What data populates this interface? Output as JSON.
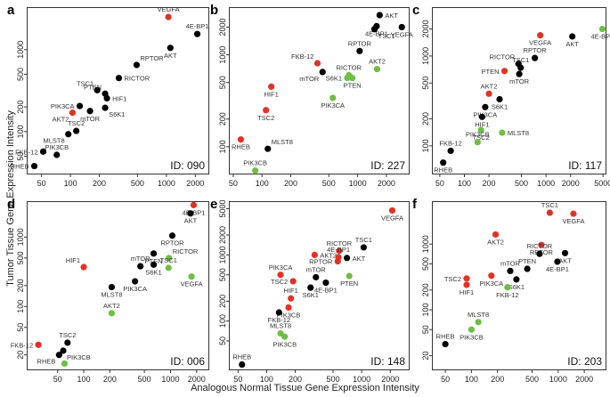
{
  "colors": {
    "red": "#e23226",
    "black": "#000000",
    "green": "#6fbe44"
  },
  "figure": {
    "ylabel": "Tumor Tissue Gene Expression Intensity",
    "xlabel": "Analogous Normal Tissue Gene Expression Intensity"
  },
  "chart_data": [
    {
      "type": "scatter",
      "letter": "a",
      "id_label": "ID: 090",
      "xlog": true,
      "ylog": true,
      "xlim": [
        35,
        2800
      ],
      "ylim": [
        30,
        3300
      ],
      "xticks": [
        50,
        100,
        200,
        500,
        1000,
        2000
      ],
      "yticks": [
        50,
        100,
        200,
        500,
        1000
      ],
      "points": [
        {
          "gene": "VEGFA",
          "x": 1050,
          "y": 2500,
          "color": "red",
          "label_pos": "above"
        },
        {
          "gene": "4E-BP1",
          "x": 2100,
          "y": 1550,
          "color": "black",
          "label_pos": "above"
        },
        {
          "gene": "AKT",
          "x": 1100,
          "y": 1050,
          "color": "black",
          "label_pos": "below"
        },
        {
          "gene": "RPTOR",
          "x": 490,
          "y": 650,
          "color": "black",
          "label_pos": "above-right"
        },
        {
          "gene": "RICTOR",
          "x": 320,
          "y": 450,
          "color": "black",
          "label_pos": "right"
        },
        {
          "gene": "TSC1",
          "x": 190,
          "y": 320,
          "color": "black",
          "label_pos": "above-left"
        },
        {
          "gene": "PTEN",
          "x": 230,
          "y": 290,
          "color": "black",
          "label_pos": "above-left"
        },
        {
          "gene": "HIF1",
          "x": 240,
          "y": 255,
          "color": "black",
          "label_pos": "right"
        },
        {
          "gene": "PIK3CA",
          "x": 125,
          "y": 205,
          "color": "black",
          "label_pos": "left"
        },
        {
          "gene": "S6K1",
          "x": 230,
          "y": 195,
          "color": "black",
          "label_pos": "below-right"
        },
        {
          "gene": "mTOR",
          "x": 160,
          "y": 178,
          "color": "black",
          "label_pos": "below"
        },
        {
          "gene": "AKT2",
          "x": 105,
          "y": 170,
          "color": "red",
          "label_pos": "below-left"
        },
        {
          "gene": "TSC2",
          "x": 115,
          "y": 102,
          "color": "black",
          "label_pos": "above"
        },
        {
          "gene": "MLST8",
          "x": 95,
          "y": 93,
          "color": "black",
          "label_pos": "below-left"
        },
        {
          "gene": "FKB-12",
          "x": 52,
          "y": 57,
          "color": "black",
          "label_pos": "left"
        },
        {
          "gene": "PIK3CB",
          "x": 72,
          "y": 52,
          "color": "black",
          "label_pos": "above"
        },
        {
          "gene": "RHEB",
          "x": 42,
          "y": 38,
          "color": "black",
          "label_pos": "left"
        }
      ]
    },
    {
      "type": "scatter",
      "letter": "b",
      "id_label": "ID: 227",
      "xlog": true,
      "ylog": true,
      "xlim": [
        45,
        3500
      ],
      "ylim": [
        50,
        3300
      ],
      "xticks": [
        50,
        100,
        200,
        500,
        1000,
        2000
      ],
      "yticks": [
        100,
        200,
        500,
        1000,
        2000
      ],
      "points": [
        {
          "gene": "AKT",
          "x": 1700,
          "y": 2700,
          "color": "black",
          "label_pos": "right"
        },
        {
          "gene": "4E-BP1",
          "x": 1580,
          "y": 2050,
          "color": "black",
          "label_pos": "below"
        },
        {
          "gene": "VEGFA",
          "x": 2900,
          "y": 2000,
          "color": "black",
          "label_pos": "below"
        },
        {
          "gene": "TSC1",
          "x": 1500,
          "y": 1900,
          "color": "black",
          "label_pos": "below-right"
        },
        {
          "gene": "RPTOR",
          "x": 1050,
          "y": 1100,
          "color": "black",
          "label_pos": "above"
        },
        {
          "gene": "FKB-12",
          "x": 380,
          "y": 810,
          "color": "red",
          "label_pos": "above-left"
        },
        {
          "gene": "AKT2",
          "x": 1600,
          "y": 700,
          "color": "green",
          "label_pos": "above"
        },
        {
          "gene": "RICTOR",
          "x": 810,
          "y": 600,
          "color": "green",
          "label_pos": "above"
        },
        {
          "gene": "S6K1",
          "x": 780,
          "y": 560,
          "color": "green",
          "label_pos": "left"
        },
        {
          "gene": "mTOR",
          "x": 430,
          "y": 650,
          "color": "black",
          "label_pos": "below-left"
        },
        {
          "gene": "PTEN",
          "x": 880,
          "y": 560,
          "color": "green",
          "label_pos": "below"
        },
        {
          "gene": "HIF1",
          "x": 125,
          "y": 450,
          "color": "red",
          "label_pos": "below"
        },
        {
          "gene": "PIK3CA",
          "x": 550,
          "y": 340,
          "color": "green",
          "label_pos": "below"
        },
        {
          "gene": "TSC2",
          "x": 110,
          "y": 250,
          "color": "red",
          "label_pos": "below"
        },
        {
          "gene": "RHEB",
          "x": 60,
          "y": 120,
          "color": "red",
          "label_pos": "below"
        },
        {
          "gene": "MLST8",
          "x": 115,
          "y": 95,
          "color": "black",
          "label_pos": "above-right"
        },
        {
          "gene": "PIK3CB",
          "x": 85,
          "y": 55,
          "color": "green",
          "label_pos": "above"
        }
      ]
    },
    {
      "type": "scatter",
      "letter": "c",
      "id_label": "ID: 117",
      "xlog": true,
      "ylog": true,
      "xlim": [
        40,
        5500
      ],
      "ylim": [
        48,
        3500
      ],
      "xticks": [
        50,
        100,
        200,
        500,
        1000,
        2000,
        5000
      ],
      "yticks": [
        100,
        200,
        500,
        1000,
        2000
      ],
      "points": [
        {
          "gene": "4E-BP1",
          "x": 4900,
          "y": 2000,
          "color": "green",
          "label_pos": "below"
        },
        {
          "gene": "VEGFA",
          "x": 850,
          "y": 1700,
          "color": "red",
          "label_pos": "below"
        },
        {
          "gene": "AKT",
          "x": 2100,
          "y": 1650,
          "color": "black",
          "label_pos": "below"
        },
        {
          "gene": "RPTOR",
          "x": 730,
          "y": 950,
          "color": "black",
          "label_pos": "above"
        },
        {
          "gene": "RICTOR",
          "x": 460,
          "y": 820,
          "color": "black",
          "label_pos": "above-left"
        },
        {
          "gene": "TSC1",
          "x": 490,
          "y": 740,
          "color": "black",
          "label_pos": "above"
        },
        {
          "gene": "PTEN",
          "x": 310,
          "y": 680,
          "color": "red",
          "label_pos": "left"
        },
        {
          "gene": "mTOR",
          "x": 470,
          "y": 630,
          "color": "black",
          "label_pos": "below"
        },
        {
          "gene": "AKT2",
          "x": 200,
          "y": 380,
          "color": "red",
          "label_pos": "above"
        },
        {
          "gene": "S6K1",
          "x": 270,
          "y": 330,
          "color": "black",
          "label_pos": "below"
        },
        {
          "gene": "PIK3CA",
          "x": 180,
          "y": 270,
          "color": "black",
          "label_pos": "below"
        },
        {
          "gene": "HIF1",
          "x": 165,
          "y": 210,
          "color": "black",
          "label_pos": "below"
        },
        {
          "gene": "TSC2",
          "x": 160,
          "y": 150,
          "color": "green",
          "label_pos": "below"
        },
        {
          "gene": "MLST8",
          "x": 290,
          "y": 140,
          "color": "green",
          "label_pos": "right"
        },
        {
          "gene": "PIK3CB",
          "x": 145,
          "y": 110,
          "color": "green",
          "label_pos": "above"
        },
        {
          "gene": "FKB-12",
          "x": 68,
          "y": 88,
          "color": "black",
          "label_pos": "above"
        },
        {
          "gene": "RHEB",
          "x": 55,
          "y": 65,
          "color": "black",
          "label_pos": "below"
        }
      ]
    },
    {
      "type": "scatter",
      "letter": "d",
      "id_label": "ID: 006",
      "xlog": true,
      "ylog": true,
      "xlim": [
        22,
        2800
      ],
      "ylim": [
        12,
        3300
      ],
      "xticks": [
        50,
        100,
        200,
        500,
        1000,
        2000
      ],
      "yticks": [
        20,
        50,
        100,
        200,
        500,
        1000
      ],
      "points": [
        {
          "gene": "4E-BP1",
          "x": 1850,
          "y": 2900,
          "color": "red",
          "label_pos": "below"
        },
        {
          "gene": "AKT",
          "x": 1700,
          "y": 2200,
          "color": "black",
          "label_pos": "below"
        },
        {
          "gene": "RPTOR",
          "x": 1050,
          "y": 1050,
          "color": "black",
          "label_pos": "below"
        },
        {
          "gene": "PTEN",
          "x": 640,
          "y": 580,
          "color": "black",
          "label_pos": "below"
        },
        {
          "gene": "RICTOR",
          "x": 960,
          "y": 500,
          "color": "green",
          "label_pos": "above-right"
        },
        {
          "gene": "mTOR",
          "x": 450,
          "y": 380,
          "color": "black",
          "label_pos": "above"
        },
        {
          "gene": "S6K1",
          "x": 640,
          "y": 400,
          "color": "black",
          "label_pos": "below"
        },
        {
          "gene": "TSC1",
          "x": 950,
          "y": 360,
          "color": "green",
          "label_pos": "above"
        },
        {
          "gene": "HIF1",
          "x": 100,
          "y": 370,
          "color": "red",
          "label_pos": "above-left"
        },
        {
          "gene": "VEGFA",
          "x": 1750,
          "y": 270,
          "color": "green",
          "label_pos": "below"
        },
        {
          "gene": "PIK3CA",
          "x": 390,
          "y": 230,
          "color": "black",
          "label_pos": "below"
        },
        {
          "gene": "MLST8",
          "x": 210,
          "y": 190,
          "color": "black",
          "label_pos": "below"
        },
        {
          "gene": "AKT2",
          "x": 210,
          "y": 80,
          "color": "green",
          "label_pos": "above"
        },
        {
          "gene": "FKB-12",
          "x": 30,
          "y": 28,
          "color": "red",
          "label_pos": "left"
        },
        {
          "gene": "TSC2",
          "x": 65,
          "y": 30,
          "color": "black",
          "label_pos": "above"
        },
        {
          "gene": "PIK3CB",
          "x": 58,
          "y": 23,
          "color": "black",
          "label_pos": "below-right"
        },
        {
          "gene": "RHEB",
          "x": 52,
          "y": 20,
          "color": "black",
          "label_pos": "below-left"
        },
        {
          "gene": "",
          "x": 60,
          "y": 15,
          "color": "green",
          "label_pos": "none"
        }
      ]
    },
    {
      "type": "scatter",
      "letter": "e",
      "id_label": "ID: 148",
      "xlog": true,
      "ylog": true,
      "xlim": [
        40,
        3200
      ],
      "ylim": [
        18,
        6500
      ],
      "xticks": [
        50,
        100,
        200,
        500,
        1000,
        2000
      ],
      "yticks": [
        50,
        100,
        200,
        500,
        1000,
        2000,
        5000
      ],
      "points": [
        {
          "gene": "VEGFA",
          "x": 2100,
          "y": 4700,
          "color": "red",
          "label_pos": "below"
        },
        {
          "gene": "TSC1",
          "x": 1050,
          "y": 1300,
          "color": "black",
          "label_pos": "above"
        },
        {
          "gene": "RICTOR",
          "x": 580,
          "y": 1150,
          "color": "red",
          "label_pos": "above"
        },
        {
          "gene": "AKT2",
          "x": 320,
          "y": 1000,
          "color": "red",
          "label_pos": "right"
        },
        {
          "gene": "AKT",
          "x": 700,
          "y": 900,
          "color": "black",
          "label_pos": "right"
        },
        {
          "gene": "4E-BP1",
          "x": 570,
          "y": 920,
          "color": "red",
          "label_pos": "above"
        },
        {
          "gene": "RPTOR",
          "x": 560,
          "y": 800,
          "color": "red",
          "label_pos": "left"
        },
        {
          "gene": "PIK3CA",
          "x": 140,
          "y": 500,
          "color": "red",
          "label_pos": "above"
        },
        {
          "gene": "mTOR",
          "x": 330,
          "y": 460,
          "color": "black",
          "label_pos": "above"
        },
        {
          "gene": "TSC2",
          "x": 190,
          "y": 400,
          "color": "red",
          "label_pos": "left"
        },
        {
          "gene": "PTEN",
          "x": 740,
          "y": 480,
          "color": "green",
          "label_pos": "below"
        },
        {
          "gene": "S6K1",
          "x": 290,
          "y": 320,
          "color": "black",
          "label_pos": "below"
        },
        {
          "gene": "4E-BP1",
          "x": 420,
          "y": 380,
          "color": "black",
          "label_pos": "below"
        },
        {
          "gene": "HIF1",
          "x": 180,
          "y": 220,
          "color": "red",
          "label_pos": "above"
        },
        {
          "gene": "PIK3CB",
          "x": 170,
          "y": 160,
          "color": "red",
          "label_pos": "below"
        },
        {
          "gene": "FKB-12",
          "x": 135,
          "y": 135,
          "color": "black",
          "label_pos": "below"
        },
        {
          "gene": "MLST8",
          "x": 140,
          "y": 65,
          "color": "green",
          "label_pos": "above"
        },
        {
          "gene": "PIK3CB",
          "x": 155,
          "y": 58,
          "color": "green",
          "label_pos": "below"
        },
        {
          "gene": "RHEB",
          "x": 55,
          "y": 22,
          "color": "black",
          "label_pos": "above"
        }
      ]
    },
    {
      "type": "scatter",
      "letter": "f",
      "id_label": "ID: 203",
      "xlog": true,
      "ylog": true,
      "xlim": [
        35,
        3600
      ],
      "ylim": [
        12,
        4500
      ],
      "xticks": [
        50,
        100,
        200,
        500,
        1000,
        2000
      ],
      "yticks": [
        20,
        50,
        100,
        200,
        500,
        1000
      ],
      "points": [
        {
          "gene": "TSC1",
          "x": 800,
          "y": 3000,
          "color": "red",
          "label_pos": "above"
        },
        {
          "gene": "VEGFA",
          "x": 1500,
          "y": 2900,
          "color": "red",
          "label_pos": "below"
        },
        {
          "gene": "AKT2",
          "x": 190,
          "y": 1400,
          "color": "red",
          "label_pos": "below"
        },
        {
          "gene": "RPTOR",
          "x": 640,
          "y": 970,
          "color": "red",
          "label_pos": "below"
        },
        {
          "gene": "RICTOR",
          "x": 610,
          "y": 710,
          "color": "black",
          "label_pos": "above"
        },
        {
          "gene": "AKT",
          "x": 1200,
          "y": 730,
          "color": "black",
          "label_pos": "below"
        },
        {
          "gene": "4E-BP1",
          "x": 980,
          "y": 540,
          "color": "black",
          "label_pos": "below"
        },
        {
          "gene": "mTOR",
          "x": 280,
          "y": 390,
          "color": "black",
          "label_pos": "above"
        },
        {
          "gene": "PTEN",
          "x": 440,
          "y": 420,
          "color": "black",
          "label_pos": "above"
        },
        {
          "gene": "PIK3CA",
          "x": 170,
          "y": 330,
          "color": "red",
          "label_pos": "below"
        },
        {
          "gene": "S6K1",
          "x": 330,
          "y": 290,
          "color": "black",
          "label_pos": "below"
        },
        {
          "gene": "TSC2",
          "x": 88,
          "y": 300,
          "color": "red",
          "label_pos": "left"
        },
        {
          "gene": "HIF1",
          "x": 88,
          "y": 240,
          "color": "red",
          "label_pos": "below"
        },
        {
          "gene": "FKB-12",
          "x": 260,
          "y": 220,
          "color": "green",
          "label_pos": "below"
        },
        {
          "gene": "MLST8",
          "x": 120,
          "y": 65,
          "color": "green",
          "label_pos": "above"
        },
        {
          "gene": "PIK3CB",
          "x": 100,
          "y": 50,
          "color": "green",
          "label_pos": "below"
        },
        {
          "gene": "RHEB",
          "x": 50,
          "y": 30,
          "color": "black",
          "label_pos": "above"
        }
      ]
    }
  ]
}
